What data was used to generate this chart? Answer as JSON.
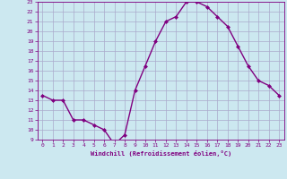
{
  "x": [
    0,
    1,
    2,
    3,
    4,
    5,
    6,
    7,
    8,
    9,
    10,
    11,
    12,
    13,
    14,
    15,
    16,
    17,
    18,
    19,
    20,
    21,
    22,
    23
  ],
  "y": [
    13.5,
    13.0,
    13.0,
    11.0,
    11.0,
    10.5,
    10.0,
    8.5,
    9.5,
    14.0,
    16.5,
    19.0,
    21.0,
    21.5,
    23.0,
    23.0,
    22.5,
    21.5,
    20.5,
    18.5,
    16.5,
    15.0,
    14.5,
    13.5
  ],
  "line_color": "#800080",
  "marker": "D",
  "marker_size": 2,
  "line_width": 1.0,
  "xlabel": "Windchill (Refroidissement éolien,°C)",
  "xlim": [
    -0.5,
    23.5
  ],
  "ylim": [
    9,
    23
  ],
  "yticks": [
    9,
    10,
    11,
    12,
    13,
    14,
    15,
    16,
    17,
    18,
    19,
    20,
    21,
    22,
    23
  ],
  "xticks": [
    0,
    1,
    2,
    3,
    4,
    5,
    6,
    7,
    8,
    9,
    10,
    11,
    12,
    13,
    14,
    15,
    16,
    17,
    18,
    19,
    20,
    21,
    22,
    23
  ],
  "background_color": "#cce8f0",
  "grid_color": "#aaaacc",
  "label_color": "#800080",
  "tick_color": "#800080",
  "axis_color": "#800080"
}
